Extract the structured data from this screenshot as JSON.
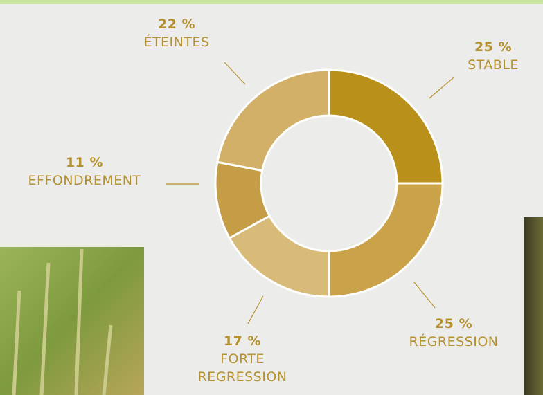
{
  "chart_data": {
    "type": "donut",
    "categories": [
      "STABLE",
      "RÉGRESSION",
      "FORTE REGRESSION",
      "EFFONDREMENT",
      "ÉTEINTES"
    ],
    "values": [
      25,
      25,
      17,
      11,
      22
    ],
    "value_labels": [
      "25 %",
      "25 %",
      "17 %",
      "11 %",
      "22 %"
    ],
    "colors": [
      "#b8901a",
      "#c9a24a",
      "#d8bb78",
      "#c49d46",
      "#d2b068"
    ]
  }
}
